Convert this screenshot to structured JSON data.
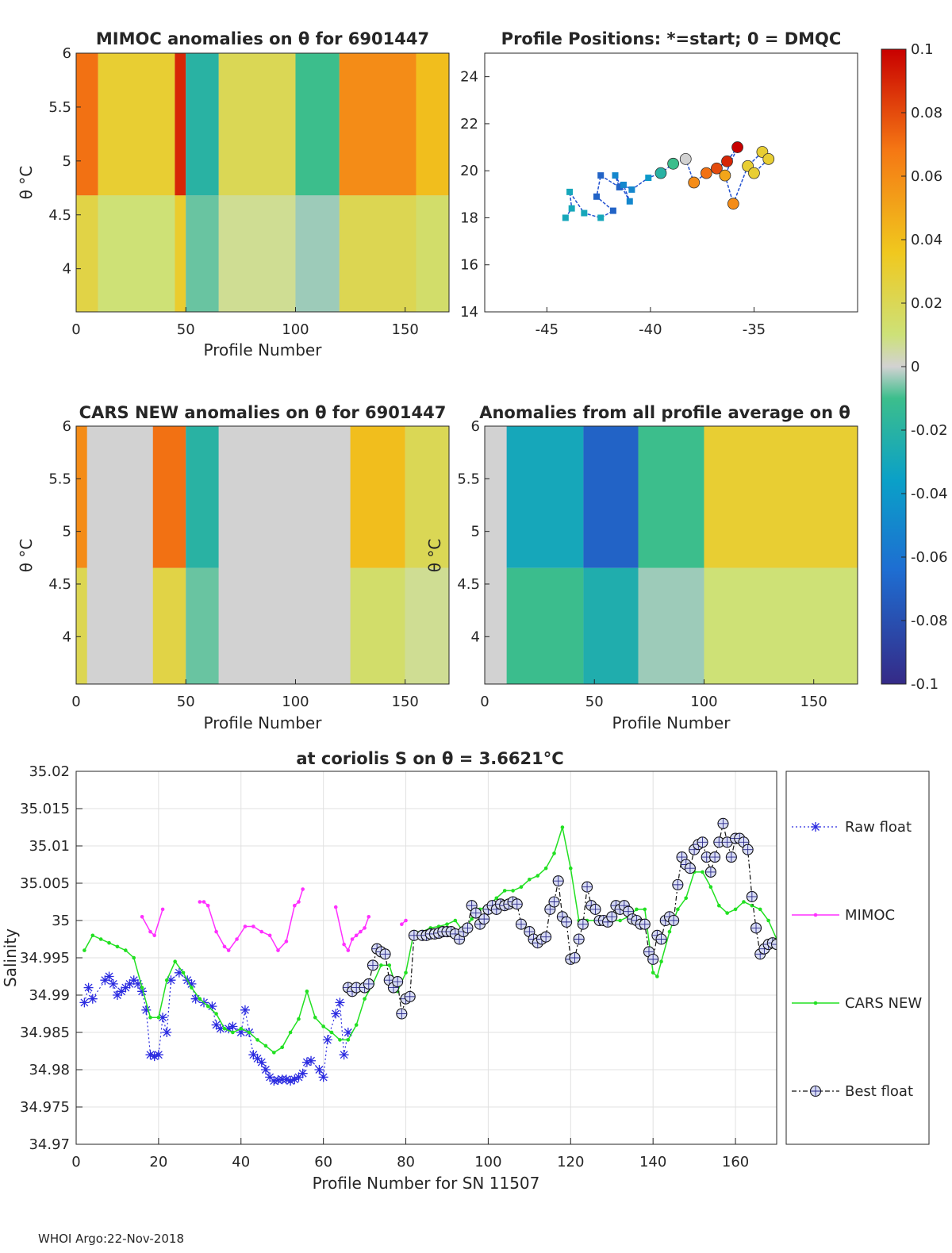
{
  "footer": "WHOI Argo:22-Nov-2018",
  "colorbar": {
    "ticks": [
      "0.1",
      "0.08",
      "0.06",
      "0.04",
      "0.02",
      "0",
      "-0.02",
      "-0.04",
      "-0.06",
      "-0.08",
      "-0.1"
    ],
    "range": [
      -0.1,
      0.1
    ]
  },
  "chart_data": [
    {
      "id": "mimoc_anom",
      "type": "heatmap",
      "title": "MIMOC anomalies on θ  for 6901447",
      "xlabel": "Profile Number",
      "ylabel": "θ °C",
      "xlim": [
        0,
        170
      ],
      "ylim": [
        3.6,
        6
      ],
      "xticks": [
        "0",
        "50",
        "100",
        "150"
      ],
      "yticks": [
        "4",
        "4.5",
        "5",
        "5.5",
        "6"
      ],
      "bands": [
        {
          "x0": 0,
          "x1": 10,
          "value": 0.07
        },
        {
          "x0": 10,
          "x1": 45,
          "value": 0.03
        },
        {
          "x0": 45,
          "x1": 50,
          "value": 0.09
        },
        {
          "x0": 50,
          "x1": 65,
          "value": -0.02
        },
        {
          "x0": 65,
          "x1": 100,
          "value": 0.02
        },
        {
          "x0": 100,
          "x1": 120,
          "value": -0.01
        },
        {
          "x0": 120,
          "x1": 155,
          "value": 0.06
        },
        {
          "x0": 155,
          "x1": 170,
          "value": 0.04
        }
      ]
    },
    {
      "id": "positions",
      "type": "scatter",
      "title": "Profile Positions: *=start; 0 = DMQC",
      "xlim": [
        -48,
        -30
      ],
      "ylim": [
        14,
        25
      ],
      "xticks": [
        "-45",
        "-40",
        "-35"
      ],
      "yticks": [
        "14",
        "16",
        "18",
        "20",
        "22",
        "24"
      ],
      "points": [
        {
          "lon": -44.1,
          "lat": 18.0,
          "value": -0.03
        },
        {
          "lon": -43.8,
          "lat": 18.4,
          "value": -0.03
        },
        {
          "lon": -43.9,
          "lat": 19.1,
          "value": -0.03
        },
        {
          "lon": -43.2,
          "lat": 18.2,
          "value": -0.03
        },
        {
          "lon": -42.4,
          "lat": 18.0,
          "value": -0.03
        },
        {
          "lon": -41.8,
          "lat": 18.3,
          "value": -0.07
        },
        {
          "lon": -42.6,
          "lat": 18.9,
          "value": -0.07
        },
        {
          "lon": -42.4,
          "lat": 19.8,
          "value": -0.07
        },
        {
          "lon": -41.5,
          "lat": 19.3,
          "value": -0.07
        },
        {
          "lon": -41.7,
          "lat": 19.8,
          "value": -0.05
        },
        {
          "lon": -41.0,
          "lat": 18.7,
          "value": -0.05
        },
        {
          "lon": -41.3,
          "lat": 19.4,
          "value": -0.05
        },
        {
          "lon": -40.9,
          "lat": 19.2,
          "value": -0.05
        },
        {
          "lon": -40.1,
          "lat": 19.7,
          "value": -0.04
        },
        {
          "lon": -39.5,
          "lat": 19.9,
          "value": -0.02
        },
        {
          "lon": -38.9,
          "lat": 20.3,
          "value": -0.01
        },
        {
          "lon": -38.3,
          "lat": 20.5,
          "value": 0.0
        },
        {
          "lon": -37.9,
          "lat": 19.5,
          "value": 0.06
        },
        {
          "lon": -37.3,
          "lat": 19.9,
          "value": 0.07
        },
        {
          "lon": -36.8,
          "lat": 20.1,
          "value": 0.08
        },
        {
          "lon": -36.3,
          "lat": 20.4,
          "value": 0.09
        },
        {
          "lon": -35.8,
          "lat": 21.0,
          "value": 0.1
        },
        {
          "lon": -36.4,
          "lat": 19.8,
          "value": 0.05
        },
        {
          "lon": -36.0,
          "lat": 18.6,
          "value": 0.06
        },
        {
          "lon": -35.3,
          "lat": 20.2,
          "value": 0.03
        },
        {
          "lon": -34.6,
          "lat": 20.8,
          "value": 0.03
        },
        {
          "lon": -34.3,
          "lat": 20.5,
          "value": 0.03
        },
        {
          "lon": -35.0,
          "lat": 19.9,
          "value": 0.03
        }
      ]
    },
    {
      "id": "cars_anom",
      "type": "heatmap",
      "title": "CARS NEW anomalies on θ for 6901447",
      "xlabel": "Profile Number",
      "ylabel": "θ °C",
      "xlim": [
        0,
        170
      ],
      "ylim": [
        3.55,
        6
      ],
      "xticks": [
        "0",
        "50",
        "100",
        "150"
      ],
      "yticks": [
        "4",
        "4.5",
        "5",
        "5.5",
        "6"
      ],
      "bands": [
        {
          "x0": 0,
          "x1": 5,
          "value": 0.06
        },
        {
          "x0": 5,
          "x1": 35,
          "value": 0.0
        },
        {
          "x0": 35,
          "x1": 50,
          "value": 0.07
        },
        {
          "x0": 50,
          "x1": 65,
          "value": -0.02
        },
        {
          "x0": 65,
          "x1": 125,
          "value": 0.0
        },
        {
          "x0": 125,
          "x1": 150,
          "value": 0.04
        },
        {
          "x0": 150,
          "x1": 170,
          "value": 0.02
        }
      ]
    },
    {
      "id": "all_profile_anom",
      "type": "heatmap",
      "title": "Anomalies from all profile average on θ",
      "xlabel": "Profile Number",
      "ylabel": "θ °C",
      "xlim": [
        0,
        170
      ],
      "ylim": [
        3.55,
        6
      ],
      "xticks": [
        "0",
        "50",
        "100",
        "150"
      ],
      "yticks": [
        "4",
        "4.5",
        "5",
        "5.5",
        "6"
      ],
      "bands": [
        {
          "x0": 0,
          "x1": 10,
          "value": 0.0
        },
        {
          "x0": 10,
          "x1": 45,
          "value": -0.03
        },
        {
          "x0": 45,
          "x1": 70,
          "value": -0.07
        },
        {
          "x0": 70,
          "x1": 100,
          "value": -0.01
        },
        {
          "x0": 100,
          "x1": 170,
          "value": 0.03
        }
      ]
    },
    {
      "id": "salinity_series",
      "type": "line",
      "title": "at coriolis S on θ = 3.6621°C",
      "xlabel": "Profile Number for SN 11507",
      "ylabel": "Salinity",
      "xlim": [
        0,
        170
      ],
      "ylim": [
        34.97,
        35.02
      ],
      "xticks": [
        "0",
        "20",
        "40",
        "60",
        "80",
        "100",
        "120",
        "140",
        "160"
      ],
      "yticks": [
        "34.97",
        "34.975",
        "34.98",
        "34.985",
        "34.99",
        "34.995",
        "35",
        "35.005",
        "35.01",
        "35.015",
        "35.02"
      ],
      "legend": [
        "Raw float",
        "MIMOC",
        "CARS NEW",
        "Best float"
      ],
      "series": [
        {
          "name": "Raw float",
          "x": [
            2,
            3,
            4,
            7,
            8,
            9,
            10,
            11,
            12,
            13,
            14,
            15,
            16,
            17,
            18,
            19,
            20,
            21,
            22,
            23,
            25,
            27,
            28,
            29,
            31,
            33,
            34,
            35,
            37,
            38,
            40,
            41,
            42,
            43,
            44,
            45,
            46,
            47,
            48,
            49,
            50,
            51,
            52,
            53,
            54,
            55,
            56,
            57,
            59,
            60,
            61,
            63,
            64,
            65,
            66
          ],
          "values": [
            34.989,
            34.991,
            34.9895,
            34.992,
            34.9925,
            34.9915,
            34.99,
            34.9905,
            34.991,
            34.9915,
            34.992,
            34.9915,
            34.9905,
            34.988,
            34.982,
            34.9818,
            34.982,
            34.987,
            34.985,
            34.992,
            34.993,
            34.992,
            34.9915,
            34.9895,
            34.989,
            34.9885,
            34.986,
            34.9855,
            34.9855,
            34.9858,
            34.985,
            34.988,
            34.985,
            34.982,
            34.9815,
            34.981,
            34.98,
            34.979,
            34.9785,
            34.9786,
            34.9787,
            34.9787,
            34.9785,
            34.9787,
            34.979,
            34.9795,
            34.981,
            34.9812,
            34.98,
            34.979,
            34.984,
            34.9875,
            34.989,
            34.982,
            34.985
          ]
        },
        {
          "name": "MIMOC",
          "x": [
            16,
            18,
            19,
            21,
            30,
            31,
            32,
            34,
            36,
            37,
            39,
            41,
            43,
            45,
            47,
            49,
            51,
            53,
            54,
            55,
            63,
            65,
            66,
            67,
            68,
            69,
            70,
            71,
            79,
            80
          ],
          "values": [
            35.0005,
            34.9985,
            34.998,
            35.0015,
            35.0025,
            35.0025,
            35.002,
            34.9985,
            34.9965,
            34.996,
            34.9975,
            34.9992,
            34.9992,
            34.9985,
            34.998,
            34.996,
            34.9972,
            35.002,
            35.0025,
            35.0042,
            35.0018,
            34.9968,
            34.996,
            34.9975,
            34.998,
            34.9985,
            34.999,
            35.0005,
            34.9995,
            35.0
          ],
          "breaks_after": [
            21,
            55,
            71
          ]
        },
        {
          "name": "CARS NEW",
          "x": [
            2,
            4,
            6,
            8,
            10,
            12,
            14,
            16,
            18,
            20,
            22,
            24,
            26,
            28,
            30,
            32,
            34,
            36,
            38,
            40,
            42,
            44,
            46,
            48,
            50,
            52,
            54,
            56,
            58,
            60,
            62,
            64,
            66,
            68,
            70,
            72,
            74,
            76,
            78,
            80,
            82,
            84,
            86,
            88,
            90,
            92,
            94,
            96,
            98,
            100,
            102,
            104,
            106,
            108,
            110,
            112,
            114,
            116,
            118,
            120,
            122,
            124,
            126,
            128,
            130,
            132,
            134,
            136,
            138,
            140,
            141,
            142,
            144,
            146,
            148,
            150,
            152,
            154,
            156,
            158,
            160,
            162,
            164,
            166,
            168,
            170
          ],
          "values": [
            34.996,
            34.998,
            34.9975,
            34.997,
            34.9965,
            34.996,
            34.995,
            34.991,
            34.987,
            34.987,
            34.992,
            34.9945,
            34.993,
            34.991,
            34.9895,
            34.9885,
            34.9875,
            34.9855,
            34.985,
            34.9855,
            34.985,
            34.984,
            34.9832,
            34.9823,
            34.983,
            34.985,
            34.9868,
            34.9905,
            34.987,
            34.9858,
            34.985,
            34.984,
            34.984,
            34.986,
            34.9895,
            34.9915,
            34.994,
            34.994,
            34.9905,
            34.993,
            34.9985,
            34.9985,
            34.999,
            34.9992,
            34.9995,
            35.0,
            34.9985,
            35.0002,
            35.0015,
            35.002,
            35.003,
            35.004,
            35.004,
            35.0045,
            35.0055,
            35.006,
            35.007,
            35.009,
            35.0125,
            35.007,
            35.0,
            35.0,
            35.0,
            35.0,
            35.0,
            35.0,
            35.0005,
            35.0015,
            35.0015,
            34.993,
            34.9925,
            34.9945,
            34.9985,
            35.0015,
            35.003,
            35.0065,
            35.0065,
            35.0045,
            35.002,
            35.001,
            35.0015,
            35.0025,
            35.002,
            35.0015,
            35.0,
            34.9975
          ]
        },
        {
          "name": "Best float",
          "x": [
            66,
            67,
            68,
            70,
            71,
            72,
            73,
            74,
            75,
            76,
            77,
            78,
            79,
            80,
            81,
            82,
            84,
            85,
            86,
            87,
            88,
            89,
            90,
            91,
            92,
            93,
            94,
            95,
            96,
            97,
            98,
            99,
            100,
            101,
            102,
            103,
            104,
            105,
            106,
            107,
            108,
            110,
            111,
            112,
            113,
            114,
            115,
            116,
            117,
            118,
            119,
            120,
            121,
            122,
            123,
            124,
            125,
            126,
            127,
            128,
            129,
            130,
            131,
            132,
            133,
            134,
            135,
            136,
            137,
            138,
            139,
            140,
            141,
            142,
            143,
            144,
            145,
            146,
            147,
            148,
            149,
            150,
            151,
            152,
            153,
            154,
            155,
            156,
            157,
            158,
            159,
            160,
            161,
            162,
            163,
            164,
            165,
            166,
            167,
            168,
            169,
            170
          ],
          "values": [
            34.991,
            34.9905,
            34.991,
            34.991,
            34.9915,
            34.994,
            34.9962,
            34.9958,
            34.9955,
            34.992,
            34.991,
            34.9918,
            34.9875,
            34.9895,
            34.9898,
            34.998,
            34.998,
            34.998,
            34.9982,
            34.9982,
            34.9983,
            34.9985,
            34.9985,
            34.9985,
            34.9982,
            34.9975,
            34.9985,
            34.999,
            35.002,
            35.001,
            34.9995,
            35.0002,
            35.0015,
            35.002,
            35.0015,
            35.0022,
            35.002,
            35.0022,
            35.0025,
            35.0022,
            34.9995,
            34.9985,
            34.9975,
            34.997,
            34.9975,
            34.9978,
            35.0015,
            35.0025,
            35.0053,
            35.0005,
            34.9998,
            34.9948,
            34.995,
            34.9975,
            34.9995,
            35.0045,
            35.002,
            35.0015,
            35.0,
            35.0,
            34.9998,
            35.0005,
            35.002,
            35.0015,
            35.002,
            35.0012,
            35.0002,
            35.0,
            34.9995,
            34.9995,
            34.9958,
            34.9948,
            34.998,
            34.9975,
            35.0,
            35.0005,
            35.0,
            35.0048,
            35.0085,
            35.0075,
            35.007,
            35.0095,
            35.0102,
            35.0105,
            35.0085,
            35.0065,
            35.0085,
            35.0105,
            35.013,
            35.0105,
            35.0085,
            35.011,
            35.011,
            35.0105,
            35.0095,
            35.0032,
            34.999,
            34.9955,
            34.9962,
            34.9968,
            34.997,
            34.9968
          ]
        }
      ]
    }
  ]
}
